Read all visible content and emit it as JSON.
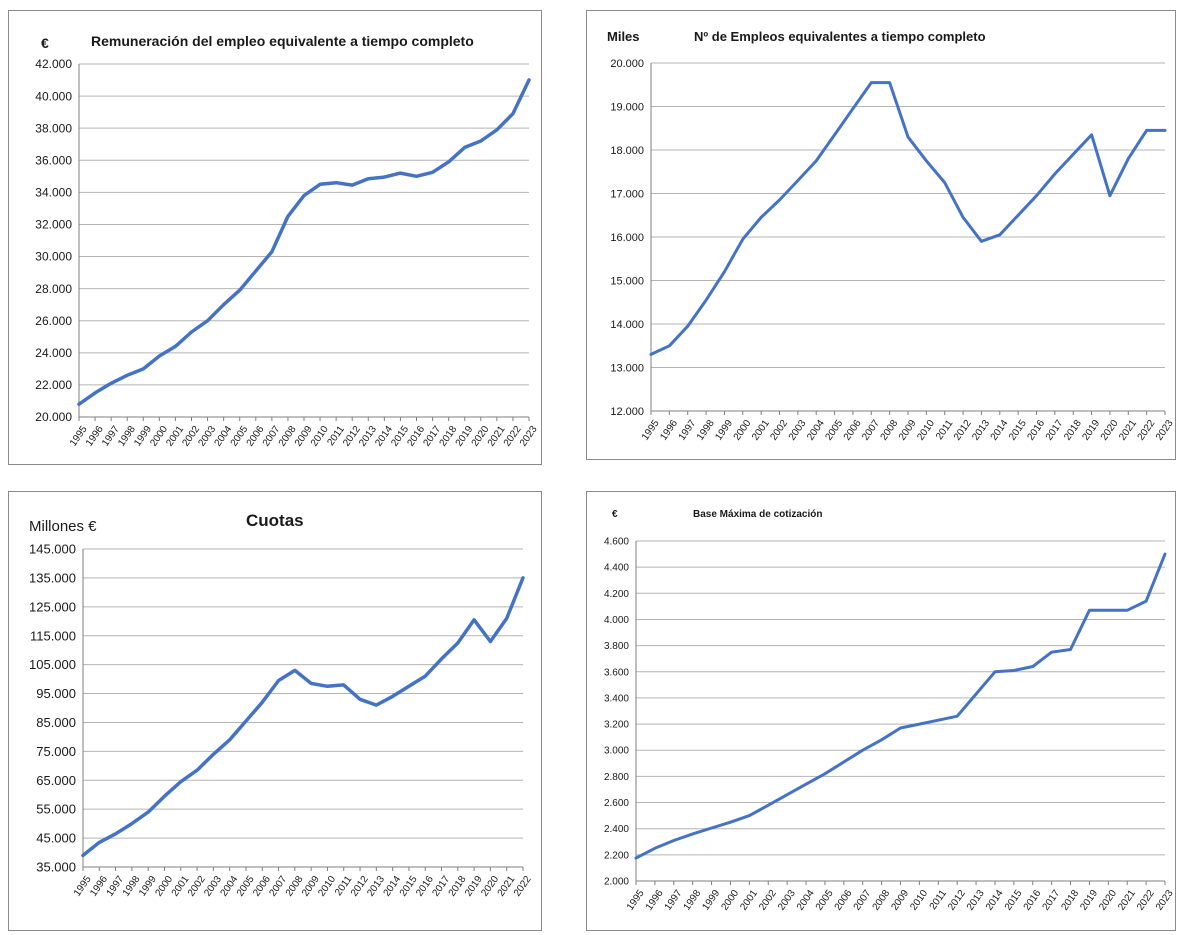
{
  "colors": {
    "line": "#4472c4",
    "grid": "#b4b4b4",
    "axis": "#7f7f7f",
    "text": "#1a1a1a"
  },
  "panels": {
    "remuneracion": {
      "unit": "€",
      "title": "Remuneración del empleo equivalente a tiempo completo"
    },
    "empleos": {
      "unit": "Miles",
      "title": "Nº de Empleos equivalentes a tiempo completo"
    },
    "cuotas": {
      "unit": "Millones €",
      "title": "Cuotas"
    },
    "base": {
      "unit": "€",
      "title": "Base Máxima de cotización"
    }
  },
  "chart_data": [
    {
      "type": "line",
      "title": "Remuneración del empleo equivalente a tiempo completo",
      "ylabel": "€",
      "ylim": [
        20000,
        42000
      ],
      "yticks": [
        20000,
        22000,
        24000,
        26000,
        28000,
        30000,
        32000,
        34000,
        36000,
        38000,
        40000,
        42000
      ],
      "ytick_labels": [
        "20.000",
        "22.000",
        "24.000",
        "26.000",
        "28.000",
        "30.000",
        "32.000",
        "34.000",
        "36.000",
        "38.000",
        "40.000",
        "42.000"
      ],
      "grid": true,
      "x": [
        "1995",
        "1996",
        "1997",
        "1998",
        "1999",
        "2000",
        "2001",
        "2002",
        "2003",
        "2004",
        "2005",
        "2006",
        "2007",
        "2008",
        "2009",
        "2010",
        "2011",
        "2012",
        "2013",
        "2014",
        "2015",
        "2016",
        "2017",
        "2018",
        "2019",
        "2020",
        "2021",
        "2022",
        "2023"
      ],
      "series": [
        {
          "values": [
            20800,
            21500,
            22100,
            22600,
            23000,
            23800,
            24400,
            25300,
            26000,
            27000,
            27900,
            29100,
            30300,
            32500,
            33800,
            34500,
            34600,
            34450,
            34850,
            34950,
            35200,
            35000,
            35250,
            35900,
            36800,
            37200,
            37900,
            38900,
            41000
          ]
        }
      ]
    },
    {
      "type": "line",
      "title": "Nº de Empleos equivalentes a tiempo completo",
      "ylabel": "Miles",
      "ylim": [
        12000,
        20000
      ],
      "yticks": [
        12000,
        13000,
        14000,
        15000,
        16000,
        17000,
        18000,
        19000,
        20000
      ],
      "ytick_labels": [
        "12.000",
        "13.000",
        "14.000",
        "15.000",
        "16.000",
        "17.000",
        "18.000",
        "19.000",
        "20.000"
      ],
      "grid": true,
      "x": [
        "1995",
        "1996",
        "1997",
        "1998",
        "1999",
        "2000",
        "2001",
        "2002",
        "2003",
        "2004",
        "2005",
        "2006",
        "2007",
        "2008",
        "2009",
        "2010",
        "2011",
        "2012",
        "2013",
        "2014",
        "2015",
        "2016",
        "2017",
        "2018",
        "2019",
        "2020",
        "2021",
        "2022",
        "2023"
      ],
      "series": [
        {
          "values": [
            13300,
            13500,
            13950,
            14550,
            15200,
            15950,
            16450,
            16850,
            17300,
            17750,
            18350,
            18950,
            19550,
            19550,
            18300,
            17750,
            17250,
            16450,
            15900,
            16050,
            16500,
            16950,
            17450,
            17900,
            18350,
            16950,
            17800,
            18450,
            18450
          ]
        }
      ]
    },
    {
      "type": "line",
      "title": "Cuotas",
      "ylabel": "Millones €",
      "ylim": [
        35000,
        145000
      ],
      "yticks": [
        35000,
        45000,
        55000,
        65000,
        75000,
        85000,
        95000,
        105000,
        115000,
        125000,
        135000,
        145000
      ],
      "ytick_labels": [
        "35.000",
        "45.000",
        "55.000",
        "65.000",
        "75.000",
        "85.000",
        "95.000",
        "105.000",
        "115.000",
        "125.000",
        "135.000",
        "145.000"
      ],
      "grid": true,
      "x": [
        "1995",
        "1996",
        "1997",
        "1998",
        "1999",
        "2000",
        "2001",
        "2002",
        "2003",
        "2004",
        "2005",
        "2006",
        "2007",
        "2008",
        "2009",
        "2010",
        "2011",
        "2012",
        "2013",
        "2014",
        "2015",
        "2016",
        "2017",
        "2018",
        "2019",
        "2020",
        "2021",
        "2022"
      ],
      "series": [
        {
          "values": [
            39000,
            43500,
            46500,
            50000,
            54000,
            59500,
            64500,
            68500,
            74000,
            79000,
            85500,
            92000,
            99500,
            103000,
            98500,
            97500,
            98000,
            93000,
            91000,
            94000,
            97500,
            101000,
            107000,
            112500,
            120500,
            113000,
            121000,
            135000
          ]
        }
      ]
    },
    {
      "type": "line",
      "title": "Base Máxima de cotización",
      "ylabel": "€",
      "ylim": [
        2000,
        4600
      ],
      "yticks": [
        2000,
        2200,
        2400,
        2600,
        2800,
        3000,
        3200,
        3400,
        3600,
        3800,
        4000,
        4200,
        4400,
        4600
      ],
      "ytick_labels": [
        "2.000",
        "2.200",
        "2.400",
        "2.600",
        "2.800",
        "3.000",
        "3.200",
        "3.400",
        "3.600",
        "3.800",
        "4.000",
        "4.200",
        "4.400",
        "4.600"
      ],
      "grid": true,
      "x": [
        "1995",
        "1996",
        "1997",
        "1998",
        "1999",
        "2000",
        "2001",
        "2002",
        "2003",
        "2004",
        "2005",
        "2006",
        "2007",
        "2008",
        "2009",
        "2010",
        "2011",
        "2012",
        "2013",
        "2014",
        "2015",
        "2016",
        "2017",
        "2018",
        "2019",
        "2020",
        "2021",
        "2022",
        "2023"
      ],
      "series": [
        {
          "values": [
            2175,
            2250,
            2310,
            2360,
            2405,
            2450,
            2500,
            2580,
            2660,
            2740,
            2820,
            2910,
            3000,
            3080,
            3170,
            3200,
            3230,
            3260,
            3430,
            3600,
            3610,
            3640,
            3750,
            3770,
            4070,
            4070,
            4070,
            4140,
            4500
          ]
        }
      ]
    }
  ]
}
